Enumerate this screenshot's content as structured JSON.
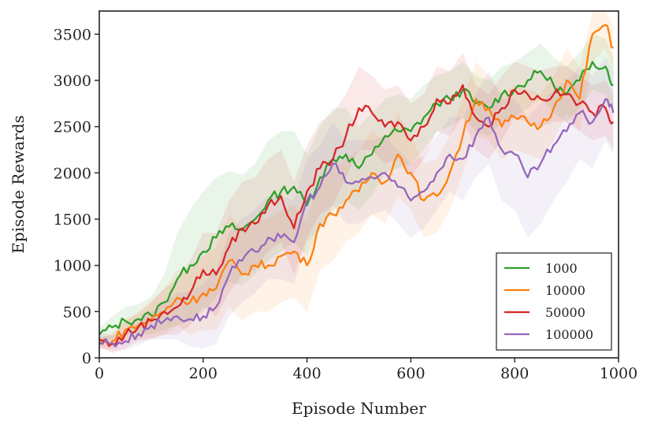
{
  "chart_data": {
    "type": "line",
    "title": "",
    "xlabel": "Episode Number",
    "ylabel": "Episode Rewards",
    "xlim": [
      0,
      1000
    ],
    "ylim": [
      0,
      3750
    ],
    "xticks": [
      0,
      200,
      400,
      600,
      800,
      1000
    ],
    "yticks": [
      0,
      500,
      1000,
      1500,
      2000,
      2500,
      3000,
      3500
    ],
    "grid": false,
    "legend_position": "lower-right",
    "series": [
      {
        "name": "1000",
        "color": "#2ca02c",
        "x": [
          0,
          25,
          50,
          75,
          100,
          125,
          150,
          175,
          200,
          225,
          250,
          275,
          300,
          325,
          350,
          375,
          400,
          425,
          450,
          475,
          500,
          525,
          550,
          575,
          600,
          625,
          650,
          675,
          700,
          725,
          750,
          775,
          800,
          825,
          850,
          875,
          900,
          925,
          950,
          975,
          990
        ],
        "y": [
          250,
          330,
          400,
          420,
          460,
          600,
          850,
          1000,
          1150,
          1300,
          1420,
          1380,
          1500,
          1700,
          1800,
          1850,
          1650,
          1950,
          2150,
          2200,
          2050,
          2200,
          2400,
          2450,
          2450,
          2600,
          2750,
          2800,
          2900,
          2750,
          2700,
          2850,
          2900,
          3000,
          3100,
          2950,
          2850,
          3000,
          3200,
          3150,
          2950
        ],
        "band": [
          80,
          120,
          150,
          160,
          200,
          300,
          500,
          600,
          650,
          650,
          600,
          600,
          600,
          650,
          650,
          600,
          550,
          550,
          550,
          500,
          450,
          450,
          400,
          400,
          350,
          350,
          300,
          300,
          300,
          300,
          300,
          300,
          300,
          300,
          300,
          300,
          300,
          300,
          300,
          300,
          300
        ]
      },
      {
        "name": "10000",
        "color": "#ff7f0e",
        "x": [
          0,
          25,
          50,
          75,
          100,
          125,
          150,
          175,
          200,
          225,
          250,
          275,
          300,
          325,
          350,
          375,
          400,
          425,
          450,
          475,
          500,
          525,
          550,
          575,
          600,
          625,
          650,
          675,
          700,
          725,
          750,
          775,
          800,
          825,
          850,
          875,
          900,
          925,
          950,
          975,
          990
        ],
        "y": [
          150,
          180,
          300,
          350,
          420,
          500,
          650,
          600,
          700,
          750,
          1050,
          900,
          1000,
          1000,
          1100,
          1150,
          1000,
          1450,
          1550,
          1700,
          1800,
          2000,
          1900,
          2200,
          2000,
          1700,
          1750,
          2000,
          2400,
          2800,
          2700,
          2500,
          2600,
          2550,
          2500,
          2700,
          3000,
          2800,
          3500,
          3600,
          3350
        ],
        "band": [
          60,
          80,
          120,
          150,
          200,
          250,
          300,
          350,
          400,
          450,
          500,
          500,
          500,
          500,
          500,
          500,
          500,
          500,
          500,
          450,
          450,
          450,
          450,
          450,
          400,
          400,
          400,
          400,
          400,
          400,
          350,
          350,
          350,
          350,
          350,
          350,
          350,
          350,
          300,
          250,
          250
        ]
      },
      {
        "name": "50000",
        "color": "#d62728",
        "x": [
          0,
          25,
          50,
          75,
          100,
          125,
          150,
          175,
          200,
          225,
          250,
          275,
          300,
          325,
          350,
          375,
          400,
          425,
          450,
          475,
          500,
          525,
          550,
          575,
          600,
          625,
          650,
          675,
          700,
          725,
          750,
          775,
          800,
          825,
          850,
          875,
          900,
          925,
          950,
          975,
          990
        ],
        "y": [
          200,
          150,
          250,
          330,
          400,
          500,
          550,
          700,
          950,
          900,
          1200,
          1400,
          1450,
          1650,
          1750,
          1400,
          1800,
          2050,
          2150,
          2400,
          2700,
          2650,
          2500,
          2550,
          2350,
          2500,
          2800,
          2750,
          2950,
          2600,
          2500,
          2700,
          2900,
          2850,
          2800,
          2850,
          2850,
          2750,
          2650,
          2700,
          2550
        ],
        "band": [
          80,
          100,
          150,
          150,
          200,
          250,
          300,
          350,
          400,
          450,
          500,
          500,
          500,
          500,
          500,
          500,
          500,
          500,
          500,
          450,
          450,
          400,
          400,
          400,
          400,
          350,
          350,
          350,
          350,
          350,
          350,
          350,
          300,
          300,
          300,
          300,
          300,
          300,
          300,
          300,
          300
        ]
      },
      {
        "name": "100000",
        "color": "#9467bd",
        "x": [
          0,
          25,
          50,
          75,
          100,
          125,
          150,
          175,
          200,
          225,
          250,
          275,
          300,
          325,
          350,
          375,
          400,
          425,
          450,
          475,
          500,
          525,
          550,
          575,
          600,
          625,
          650,
          675,
          700,
          725,
          750,
          775,
          800,
          825,
          850,
          875,
          900,
          925,
          950,
          975,
          990
        ],
        "y": [
          170,
          160,
          180,
          260,
          350,
          400,
          450,
          420,
          450,
          550,
          900,
          1050,
          1150,
          1300,
          1300,
          1250,
          1700,
          1850,
          2100,
          1900,
          1900,
          1950,
          2000,
          1850,
          1700,
          1800,
          2000,
          2200,
          2150,
          2400,
          2600,
          2250,
          2200,
          1950,
          2100,
          2300,
          2450,
          2650,
          2550,
          2800,
          2650
        ],
        "band": [
          60,
          80,
          100,
          120,
          150,
          200,
          250,
          300,
          350,
          400,
          450,
          450,
          450,
          450,
          450,
          450,
          450,
          450,
          450,
          450,
          450,
          400,
          400,
          400,
          400,
          400,
          400,
          400,
          450,
          450,
          500,
          550,
          600,
          650,
          650,
          600,
          550,
          500,
          500,
          450,
          450
        ]
      }
    ]
  }
}
